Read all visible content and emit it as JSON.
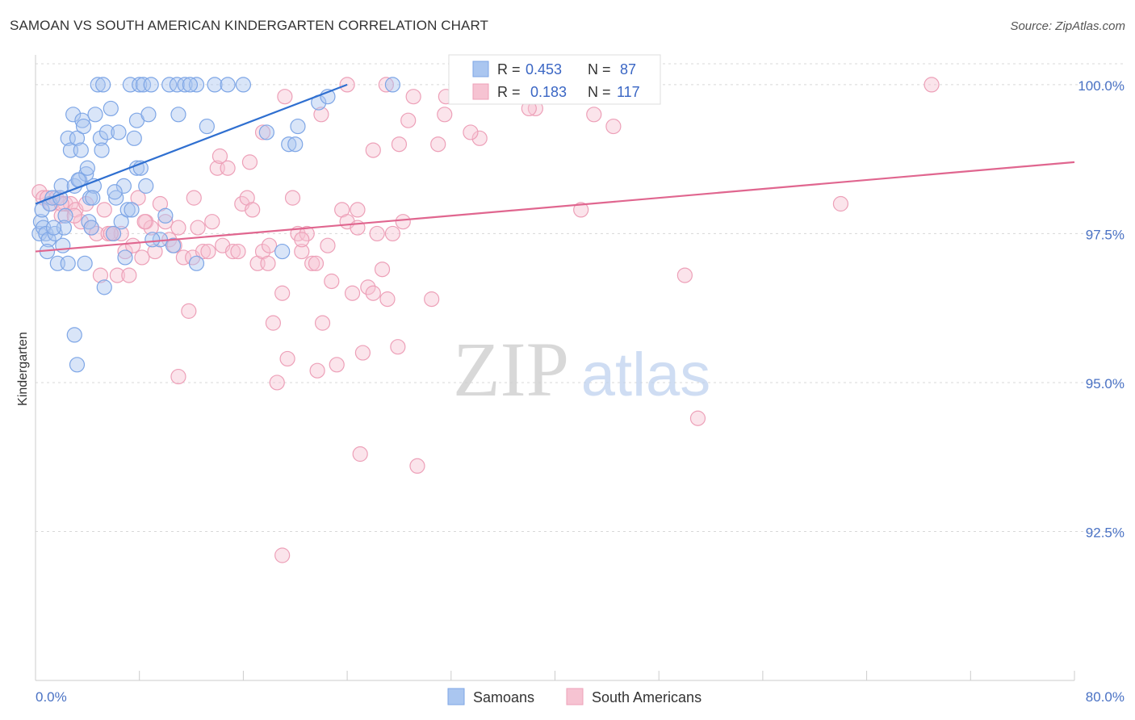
{
  "title": "SAMOAN VS SOUTH AMERICAN KINDERGARTEN CORRELATION CHART",
  "source": "Source: ZipAtlas.com",
  "watermark": {
    "zip": "ZIP",
    "atlas": "atlas"
  },
  "chart_data": {
    "type": "scatter",
    "ylabel": "Kindergarten",
    "xlim": [
      0,
      80
    ],
    "ylim": [
      90.0,
      100.5
    ],
    "x_tick_labels": [
      "0.0%",
      "80.0%"
    ],
    "y_ticks": [
      {
        "value": 100.0,
        "label": "100.0%"
      },
      {
        "value": 97.5,
        "label": "97.5%"
      },
      {
        "value": 95.0,
        "label": "95.0%"
      },
      {
        "value": 92.5,
        "label": "92.5%"
      }
    ],
    "legend_stats": [
      {
        "r_label": "R =",
        "r_value": "0.453",
        "n_label": "N =",
        "n_value": "87"
      },
      {
        "r_label": "R =",
        "r_value": "0.183",
        "n_label": "N =",
        "n_value": "117"
      }
    ],
    "series": [
      {
        "name": "Samoans",
        "color": "#7ea6e6",
        "fill": "#aac6f0",
        "line_color": "#2f6fd0",
        "trend": {
          "x": [
            0,
            24
          ],
          "y": [
            98.0,
            100.0
          ]
        },
        "points": [
          [
            0.3,
            97.5
          ],
          [
            0.4,
            97.7
          ],
          [
            0.5,
            97.9
          ],
          [
            0.6,
            97.6
          ],
          [
            0.8,
            97.5
          ],
          [
            1.0,
            97.4
          ],
          [
            1.1,
            98.0
          ],
          [
            1.3,
            98.1
          ],
          [
            1.5,
            97.5
          ],
          [
            1.7,
            97.0
          ],
          [
            1.9,
            98.1
          ],
          [
            2.0,
            98.3
          ],
          [
            2.1,
            97.3
          ],
          [
            2.3,
            97.8
          ],
          [
            2.5,
            97.0
          ],
          [
            2.5,
            99.1
          ],
          [
            2.7,
            98.9
          ],
          [
            2.9,
            99.5
          ],
          [
            3.0,
            98.3
          ],
          [
            3.2,
            99.1
          ],
          [
            3.4,
            98.4
          ],
          [
            3.5,
            98.9
          ],
          [
            3.6,
            99.4
          ],
          [
            3.7,
            99.3
          ],
          [
            3.8,
            97.0
          ],
          [
            3.9,
            98.5
          ],
          [
            4.0,
            98.6
          ],
          [
            4.1,
            97.7
          ],
          [
            4.2,
            98.1
          ],
          [
            4.3,
            97.6
          ],
          [
            4.5,
            98.3
          ],
          [
            4.6,
            99.5
          ],
          [
            4.8,
            100.0
          ],
          [
            5.0,
            99.1
          ],
          [
            5.1,
            98.9
          ],
          [
            5.2,
            100.0
          ],
          [
            5.5,
            99.2
          ],
          [
            5.8,
            99.6
          ],
          [
            6.2,
            98.1
          ],
          [
            6.4,
            99.2
          ],
          [
            6.6,
            97.7
          ],
          [
            6.8,
            98.3
          ],
          [
            6.9,
            97.1
          ],
          [
            7.1,
            97.9
          ],
          [
            7.3,
            100.0
          ],
          [
            7.6,
            99.1
          ],
          [
            7.8,
            98.6
          ],
          [
            7.8,
            99.4
          ],
          [
            8.0,
            100.0
          ],
          [
            8.3,
            100.0
          ],
          [
            8.5,
            98.3
          ],
          [
            8.7,
            99.5
          ],
          [
            8.9,
            100.0
          ],
          [
            9.6,
            97.4
          ],
          [
            10.0,
            97.8
          ],
          [
            10.3,
            100.0
          ],
          [
            10.6,
            97.3
          ],
          [
            10.9,
            100.0
          ],
          [
            11.0,
            99.5
          ],
          [
            11.5,
            100.0
          ],
          [
            12.4,
            97.0
          ],
          [
            12.4,
            100.0
          ],
          [
            13.2,
            99.3
          ],
          [
            13.8,
            100.0
          ],
          [
            14.8,
            100.0
          ],
          [
            17.8,
            99.2
          ],
          [
            19.0,
            97.2
          ],
          [
            19.5,
            99.0
          ],
          [
            20.0,
            99.0
          ],
          [
            20.2,
            99.3
          ],
          [
            21.8,
            99.7
          ],
          [
            22.5,
            99.8
          ],
          [
            27.5,
            100.0
          ],
          [
            3.0,
            95.8
          ],
          [
            3.2,
            95.3
          ],
          [
            5.3,
            96.6
          ],
          [
            6.0,
            97.5
          ],
          [
            2.2,
            97.6
          ],
          [
            1.4,
            97.6
          ],
          [
            0.9,
            97.2
          ],
          [
            3.3,
            98.4
          ],
          [
            4.4,
            98.1
          ],
          [
            6.1,
            98.2
          ],
          [
            7.4,
            97.9
          ],
          [
            8.1,
            98.6
          ],
          [
            9.0,
            97.4
          ],
          [
            11.9,
            100.0
          ],
          [
            16.0,
            100.0
          ]
        ]
      },
      {
        "name": "South Americans",
        "color": "#eda0b8",
        "fill": "#f6c3d2",
        "line_color": "#e0668f",
        "trend": {
          "x": [
            0,
            80
          ],
          "y": [
            97.2,
            98.7
          ]
        },
        "points": [
          [
            0.3,
            98.2
          ],
          [
            0.6,
            98.1
          ],
          [
            0.9,
            98.1
          ],
          [
            1.2,
            98.0
          ],
          [
            1.6,
            98.1
          ],
          [
            2.0,
            97.8
          ],
          [
            2.3,
            98.0
          ],
          [
            2.7,
            98.0
          ],
          [
            3.1,
            97.9
          ],
          [
            3.5,
            97.7
          ],
          [
            3.9,
            98.0
          ],
          [
            4.3,
            97.6
          ],
          [
            4.7,
            97.5
          ],
          [
            5.0,
            96.8
          ],
          [
            5.3,
            97.9
          ],
          [
            5.6,
            97.5
          ],
          [
            6.0,
            97.5
          ],
          [
            6.3,
            96.8
          ],
          [
            6.6,
            97.5
          ],
          [
            6.9,
            97.2
          ],
          [
            7.2,
            96.8
          ],
          [
            7.5,
            97.3
          ],
          [
            7.9,
            98.1
          ],
          [
            8.2,
            97.1
          ],
          [
            8.5,
            97.7
          ],
          [
            8.9,
            97.6
          ],
          [
            9.2,
            97.2
          ],
          [
            9.6,
            98.0
          ],
          [
            10.0,
            97.7
          ],
          [
            10.3,
            97.4
          ],
          [
            10.7,
            97.3
          ],
          [
            11.0,
            97.6
          ],
          [
            11.4,
            97.1
          ],
          [
            11.8,
            96.2
          ],
          [
            12.1,
            97.1
          ],
          [
            12.5,
            97.6
          ],
          [
            12.9,
            97.2
          ],
          [
            13.3,
            97.2
          ],
          [
            13.6,
            97.7
          ],
          [
            14.0,
            98.6
          ],
          [
            14.4,
            97.3
          ],
          [
            14.8,
            98.6
          ],
          [
            15.2,
            97.2
          ],
          [
            15.6,
            97.2
          ],
          [
            15.9,
            98.0
          ],
          [
            16.3,
            98.1
          ],
          [
            16.7,
            97.9
          ],
          [
            17.1,
            97.0
          ],
          [
            17.5,
            97.2
          ],
          [
            17.9,
            97.0
          ],
          [
            18.3,
            96.0
          ],
          [
            18.6,
            95.0
          ],
          [
            19.0,
            96.5
          ],
          [
            19.4,
            95.4
          ],
          [
            19.8,
            98.1
          ],
          [
            20.2,
            97.5
          ],
          [
            20.5,
            97.2
          ],
          [
            20.9,
            97.5
          ],
          [
            21.3,
            97.0
          ],
          [
            21.7,
            95.2
          ],
          [
            22.1,
            96.0
          ],
          [
            22.5,
            97.3
          ],
          [
            22.8,
            96.7
          ],
          [
            23.2,
            95.3
          ],
          [
            23.6,
            97.9
          ],
          [
            24.0,
            97.7
          ],
          [
            24.4,
            96.5
          ],
          [
            24.8,
            97.9
          ],
          [
            25.2,
            95.5
          ],
          [
            25.6,
            96.6
          ],
          [
            26.0,
            98.9
          ],
          [
            26.3,
            97.5
          ],
          [
            26.7,
            96.9
          ],
          [
            27.1,
            96.4
          ],
          [
            27.5,
            97.5
          ],
          [
            27.9,
            95.6
          ],
          [
            28.3,
            97.7
          ],
          [
            28.7,
            99.4
          ],
          [
            29.1,
            99.8
          ],
          [
            29.4,
            93.6
          ],
          [
            30.5,
            96.4
          ],
          [
            31.0,
            99.0
          ],
          [
            31.5,
            99.5
          ],
          [
            34.2,
            99.1
          ],
          [
            36.0,
            99.9
          ],
          [
            38.5,
            99.6
          ],
          [
            42.0,
            97.9
          ],
          [
            43.0,
            99.5
          ],
          [
            44.5,
            99.3
          ],
          [
            50.0,
            96.8
          ],
          [
            51.0,
            94.4
          ],
          [
            62.0,
            98.0
          ],
          [
            69.0,
            100.0
          ],
          [
            11.0,
            95.1
          ],
          [
            17.5,
            99.2
          ],
          [
            19.2,
            99.8
          ],
          [
            24.0,
            100.0
          ],
          [
            27.0,
            100.0
          ],
          [
            33.5,
            99.2
          ],
          [
            35.0,
            100.0
          ],
          [
            38.0,
            99.6
          ],
          [
            26.0,
            96.5
          ],
          [
            25.0,
            93.8
          ],
          [
            19.0,
            92.1
          ],
          [
            14.2,
            98.8
          ],
          [
            16.5,
            98.7
          ],
          [
            22.0,
            99.5
          ],
          [
            28.0,
            99.0
          ],
          [
            31.6,
            99.8
          ],
          [
            2.0,
            98.0
          ],
          [
            3.0,
            97.8
          ],
          [
            5.8,
            97.5
          ],
          [
            8.4,
            97.7
          ],
          [
            12.2,
            98.1
          ],
          [
            18.0,
            97.3
          ],
          [
            20.5,
            97.4
          ],
          [
            21.6,
            97.0
          ],
          [
            24.8,
            97.6
          ]
        ]
      }
    ]
  }
}
